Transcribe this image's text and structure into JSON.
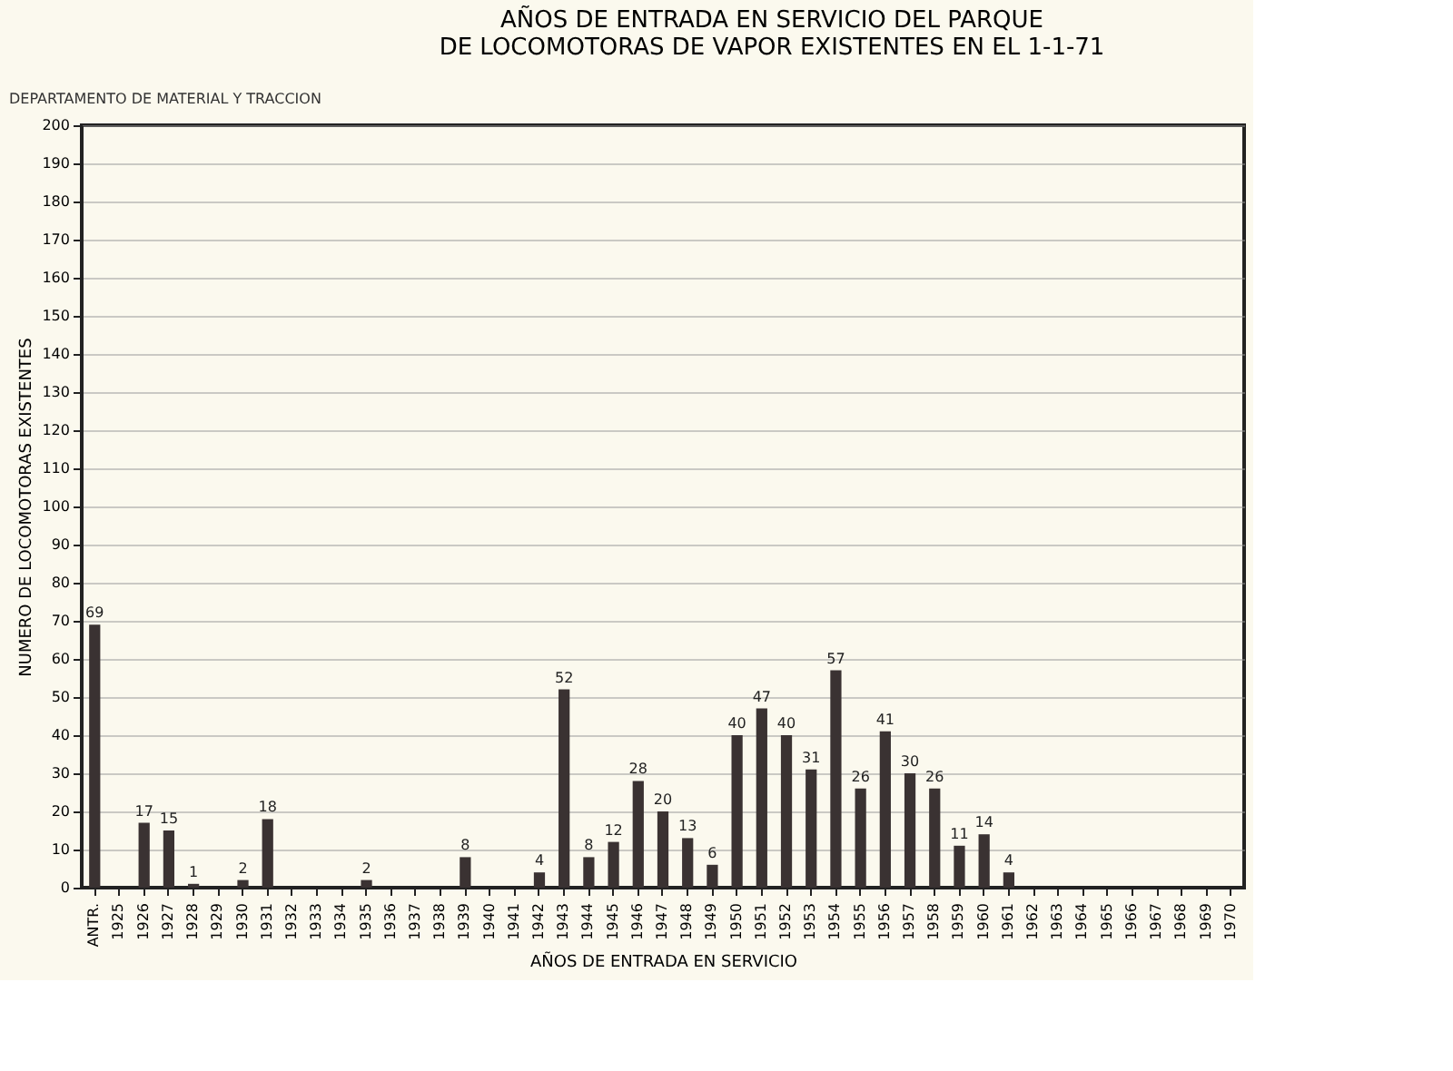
{
  "chart_data": {
    "type": "bar",
    "title": [
      "AÑOS DE ENTRADA EN SERVICIO DEL PARQUE",
      "DE LOCOMOTORAS DE VAPOR EXISTENTES EN EL 1-1-71"
    ],
    "annotations": [
      "DEPARTAMENTO DE MATERIAL Y TRACCION"
    ],
    "xlabel": "AÑOS DE ENTRADA EN SERVICIO",
    "ylabel": "NUMERO DE LOCOMOTORAS EXISTENTES",
    "categories": [
      "ANTR.",
      "1925",
      "1926",
      "1927",
      "1928",
      "1929",
      "1930",
      "1931",
      "1932",
      "1933",
      "1934",
      "1935",
      "1936",
      "1937",
      "1938",
      "1939",
      "1940",
      "1941",
      "1942",
      "1943",
      "1944",
      "1945",
      "1946",
      "1947",
      "1948",
      "1949",
      "1950",
      "1951",
      "1952",
      "1953",
      "1954",
      "1955",
      "1956",
      "1957",
      "1958",
      "1959",
      "1960",
      "1961",
      "1962",
      "1963",
      "1964",
      "1965",
      "1966",
      "1967",
      "1968",
      "1969",
      "1970"
    ],
    "values": [
      69,
      null,
      17,
      15,
      1,
      null,
      2,
      18,
      null,
      null,
      null,
      2,
      null,
      null,
      null,
      8,
      null,
      null,
      4,
      52,
      8,
      12,
      28,
      20,
      13,
      6,
      40,
      47,
      40,
      31,
      57,
      26,
      41,
      30,
      26,
      11,
      14,
      4,
      null,
      null,
      null,
      null,
      null,
      null,
      null,
      null,
      null
    ],
    "color": "#3a3232",
    "ylim": [
      0,
      200
    ],
    "yticks": [
      0,
      10,
      20,
      30,
      40,
      50,
      60,
      70,
      80,
      90,
      100,
      110,
      120,
      130,
      140,
      150,
      160,
      170,
      180,
      190,
      200
    ],
    "grid": "y",
    "data_labels": true
  }
}
